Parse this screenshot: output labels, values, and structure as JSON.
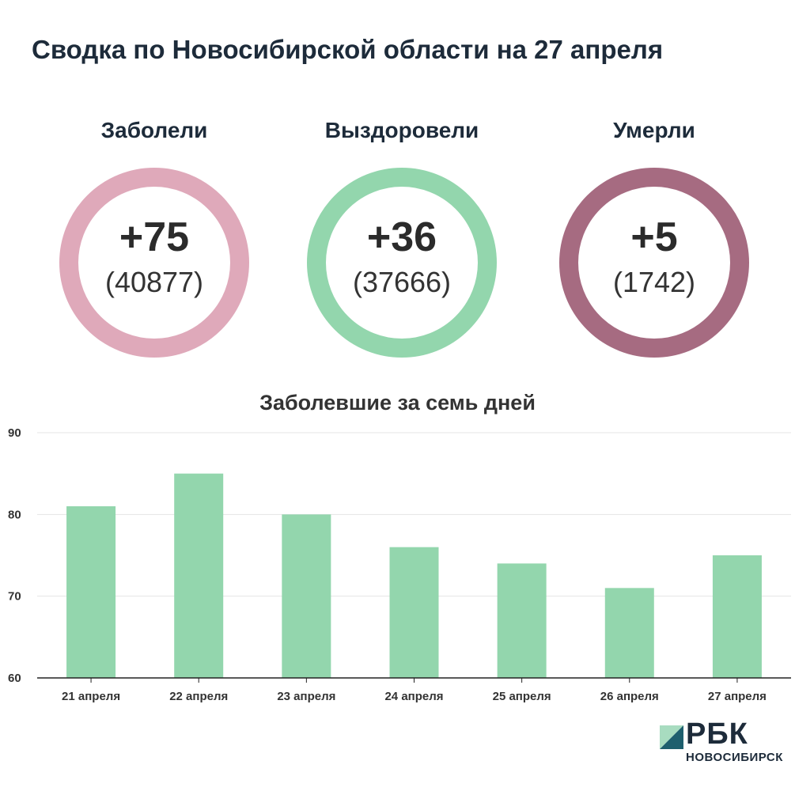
{
  "title": "Сводка по Новосибирской области на 27 апреля",
  "stats": [
    {
      "label": "Заболели",
      "delta": "+75",
      "total": "(40877)",
      "color": "#dfa9ba"
    },
    {
      "label": "Выздоровели",
      "delta": "+36",
      "total": "(37666)",
      "color": "#93d6ad"
    },
    {
      "label": "Умерли",
      "delta": "+5",
      "total": "(1742)",
      "color": "#a66b81"
    }
  ],
  "chart_data": {
    "type": "bar",
    "title": "Заболевшие за семь дней",
    "categories": [
      "21 апреля",
      "22 апреля",
      "23 апреля",
      "24 апреля",
      "25 апреля",
      "26 апреля",
      "27 апреля"
    ],
    "values": [
      81,
      85,
      80,
      76,
      74,
      71,
      75
    ],
    "ylim": [
      60,
      90
    ],
    "yticks": [
      60,
      70,
      80,
      90
    ],
    "grid": true,
    "bar_color": "#93d6ad"
  },
  "logo": {
    "name": "РБК",
    "subtitle": "НОВОСИБИРСК"
  }
}
